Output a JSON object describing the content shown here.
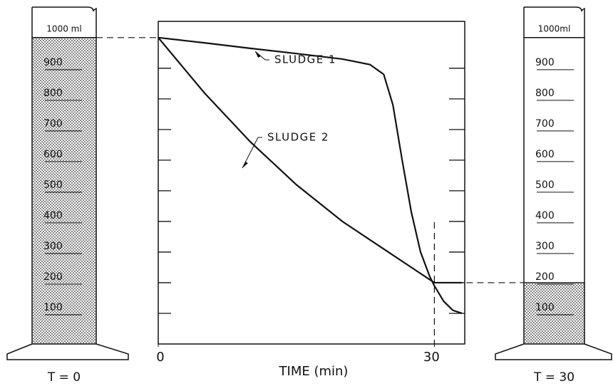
{
  "chart_data": {
    "type": "line",
    "x_label": "TIME (min)",
    "xlim": [
      0,
      33.3
    ],
    "xticks": [
      0,
      30
    ],
    "ylim": [
      0,
      1053
    ],
    "yticks": [
      100,
      200,
      300,
      400,
      500,
      600,
      700,
      800,
      900
    ],
    "series": [
      {
        "name": "SLUDGE 1",
        "color": "#111111",
        "x": [
          0,
          5,
          10,
          15,
          20,
          23,
          24.5,
          25.5,
          26.5,
          27.5,
          28.5,
          29.5,
          30,
          31,
          32,
          33
        ],
        "values": [
          1000,
          983,
          965,
          948,
          930,
          912,
          880,
          780,
          600,
          430,
          300,
          220,
          190,
          140,
          110,
          100
        ]
      },
      {
        "name": "SLUDGE 2",
        "color": "#111111",
        "x": [
          0,
          5,
          10,
          15,
          20,
          25,
          28,
          30,
          33
        ],
        "values": [
          1000,
          820,
          660,
          520,
          400,
          300,
          240,
          200,
          200
        ]
      }
    ]
  },
  "cylinders": [
    {
      "label": "T = 0",
      "top_label": "1000 ml",
      "sludge_level": 1000,
      "graduations": [
        900,
        800,
        700,
        600,
        500,
        400,
        300,
        200,
        100
      ]
    },
    {
      "label": "T = 30",
      "top_label": "1000ml",
      "sludge_level": 200,
      "graduations": [
        900,
        800,
        700,
        600,
        500,
        400,
        300,
        200,
        100
      ]
    }
  ]
}
